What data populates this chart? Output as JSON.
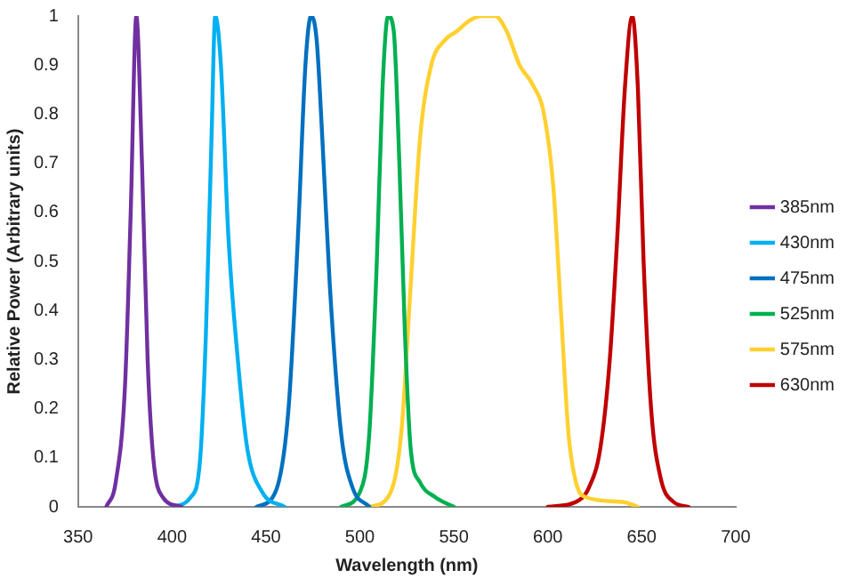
{
  "chart_data": {
    "type": "line",
    "xlabel": "Wavelength (nm)",
    "ylabel": "Relative Power (Arbitrary units)",
    "xlim": [
      350,
      700
    ],
    "xticks": [
      350,
      400,
      450,
      500,
      550,
      600,
      650,
      700
    ],
    "ylim": [
      0,
      1
    ],
    "yticks": [
      0,
      0.1,
      0.2,
      0.3,
      0.4,
      0.5,
      0.6,
      0.7,
      0.8,
      0.9,
      1
    ],
    "grid": false,
    "legend": "right",
    "marker": "none",
    "line_style": "solid",
    "series": [
      {
        "name": "385nm",
        "color": "#7030a0",
        "x": [
          365,
          370,
          375,
          378,
          381,
          384,
          387,
          390,
          395,
          405
        ],
        "values": [
          0,
          0.05,
          0.25,
          0.6,
          1.0,
          0.7,
          0.3,
          0.1,
          0.02,
          0
        ]
      },
      {
        "name": "430nm",
        "color": "#00b0f0",
        "x": [
          400,
          410,
          415,
          418,
          421,
          423,
          426,
          430,
          435,
          440,
          448,
          460
        ],
        "values": [
          0,
          0.02,
          0.1,
          0.35,
          0.75,
          1.0,
          0.9,
          0.55,
          0.3,
          0.12,
          0.03,
          0
        ]
      },
      {
        "name": "475nm",
        "color": "#0070c0",
        "x": [
          445,
          455,
          462,
          467,
          471,
          474,
          477,
          480,
          484,
          490,
          496,
          505
        ],
        "values": [
          0,
          0.03,
          0.2,
          0.55,
          0.9,
          1.0,
          0.95,
          0.75,
          0.45,
          0.15,
          0.04,
          0
        ]
      },
      {
        "name": "525nm",
        "color": "#00b050",
        "x": [
          490,
          500,
          505,
          509,
          512,
          515,
          518,
          521,
          524,
          527,
          532,
          540,
          550
        ],
        "values": [
          0,
          0.03,
          0.15,
          0.5,
          0.85,
          1.0,
          0.97,
          0.7,
          0.35,
          0.12,
          0.05,
          0.02,
          0
        ]
      },
      {
        "name": "575nm",
        "color": "#ffd030",
        "x": [
          505,
          515,
          522,
          527,
          532,
          538,
          545,
          552,
          558,
          565,
          572,
          578,
          585,
          592,
          598,
          603,
          607,
          611,
          615,
          620,
          640,
          648
        ],
        "values": [
          0,
          0.02,
          0.15,
          0.45,
          0.75,
          0.9,
          0.95,
          0.97,
          0.99,
          1.0,
          1.0,
          0.97,
          0.9,
          0.86,
          0.8,
          0.65,
          0.4,
          0.15,
          0.05,
          0.02,
          0.01,
          0
        ]
      },
      {
        "name": "630nm",
        "color": "#c00000",
        "x": [
          600,
          615,
          622,
          628,
          633,
          637,
          641,
          645,
          648,
          651,
          655,
          660,
          667,
          675
        ],
        "values": [
          0,
          0.01,
          0.04,
          0.12,
          0.3,
          0.55,
          0.85,
          1.0,
          0.85,
          0.5,
          0.2,
          0.06,
          0.01,
          0
        ]
      }
    ]
  }
}
